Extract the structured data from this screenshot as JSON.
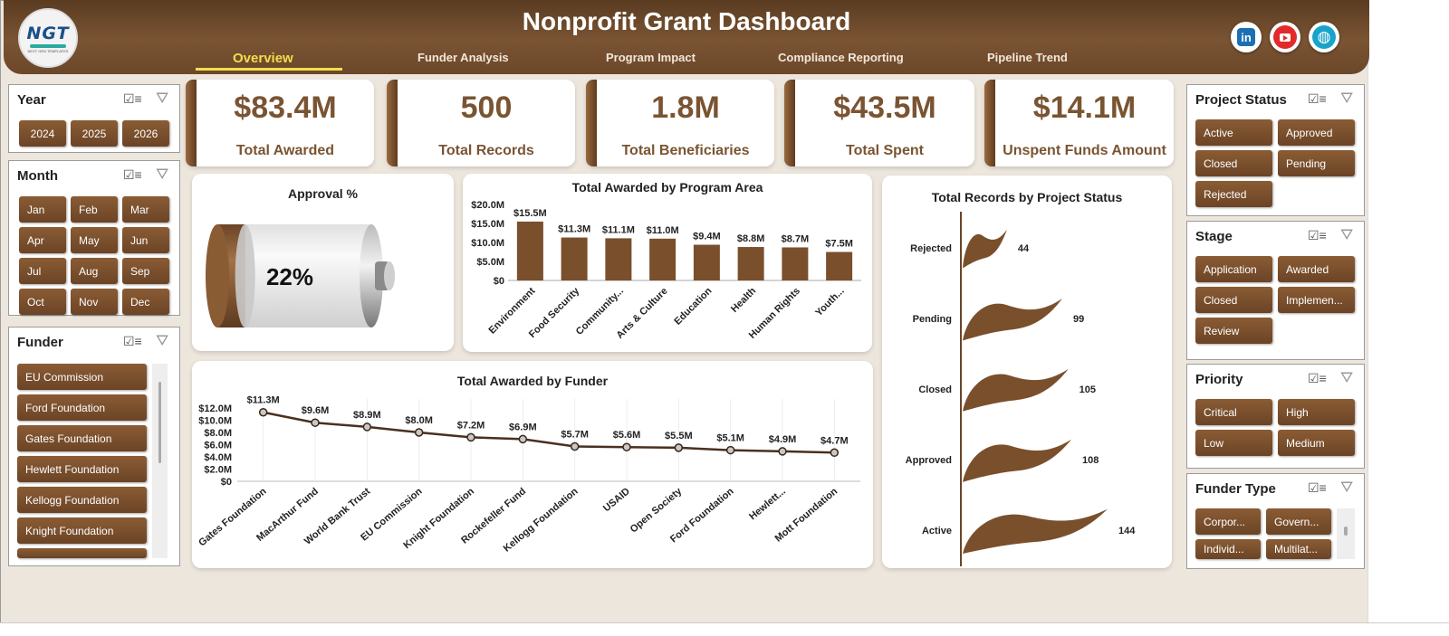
{
  "header": {
    "title": "Nonprofit Grant Dashboard",
    "logo_text": "NGT",
    "logo_subtext": "NEXT GEN TEMPLATES",
    "tabs": [
      {
        "label": "Overview",
        "active": true
      },
      {
        "label": "Funder Analysis",
        "active": false
      },
      {
        "label": "Program Impact",
        "active": false
      },
      {
        "label": "Compliance Reporting",
        "active": false
      },
      {
        "label": "Pipeline Trend",
        "active": false
      }
    ],
    "social": {
      "linkedin": "in",
      "youtube": "youtube-icon",
      "web": "globe-icon"
    },
    "colors": {
      "brand": "#6b4729",
      "accent": "#f4dd4c"
    }
  },
  "slicers": {
    "year": {
      "title": "Year",
      "items": [
        "2024",
        "2025",
        "2026"
      ]
    },
    "month": {
      "title": "Month",
      "items": [
        "Jan",
        "Feb",
        "Mar",
        "Apr",
        "May",
        "Jun",
        "Jul",
        "Aug",
        "Sep",
        "Oct",
        "Nov",
        "Dec"
      ]
    },
    "funder": {
      "title": "Funder",
      "items": [
        "EU Commission",
        "Ford Foundation",
        "Gates Foundation",
        "Hewlett Foundation",
        "Kellogg Foundation",
        "Knight Foundation"
      ]
    },
    "project_status": {
      "title": "Project Status",
      "items": [
        "Active",
        "Approved",
        "Closed",
        "Pending",
        "Rejected"
      ]
    },
    "stage": {
      "title": "Stage",
      "items": [
        "Application",
        "Awarded",
        "Closed",
        "Implemen...",
        "Review"
      ]
    },
    "priority": {
      "title": "Priority",
      "items": [
        "Critical",
        "High",
        "Low",
        "Medium"
      ]
    },
    "funder_type": {
      "title": "Funder Type",
      "items": [
        "Corpor...",
        "Govern...",
        "Individ...",
        "Multilat..."
      ]
    }
  },
  "kpis": [
    {
      "value": "$83.4M",
      "label": "Total Awarded"
    },
    {
      "value": "500",
      "label": "Total Records"
    },
    {
      "value": "1.8M",
      "label": "Total Beneficiaries"
    },
    {
      "value": "$43.5M",
      "label": "Total Spent"
    },
    {
      "value": "$14.1M",
      "label": "Unspent Funds Amount"
    }
  ],
  "approval": {
    "title": "Approval %",
    "value_text": "22%",
    "value": 22
  },
  "chart_data": [
    {
      "type": "bar",
      "title": "Total Awarded by Program Area",
      "categories": [
        "Environment",
        "Food Security",
        "Community...",
        "Arts & Culture",
        "Education",
        "Health",
        "Human Rights",
        "Youth..."
      ],
      "values": [
        15.5,
        11.3,
        11.1,
        11.0,
        9.4,
        8.8,
        8.7,
        7.5
      ],
      "data_labels": [
        "$15.5M",
        "$11.3M",
        "$11.1M",
        "$11.0M",
        "$9.4M",
        "$8.8M",
        "$8.7M",
        "$7.5M"
      ],
      "y_ticks": [
        "$0",
        "$5.0M",
        "$10.0M",
        "$15.0M",
        "$20.0M"
      ],
      "ylim": [
        0,
        20
      ]
    },
    {
      "type": "line",
      "title": "Total Awarded by Funder",
      "categories": [
        "Gates Foundation",
        "MacArthur Fund",
        "World Bank Trust",
        "EU Commission",
        "Knight Foundation",
        "Rockefeller Fund",
        "Kellogg Foundation",
        "USAID",
        "Open Society",
        "Ford Foundation",
        "Hewlett...",
        "Mott Foundation"
      ],
      "values": [
        11.3,
        9.6,
        8.9,
        8.0,
        7.2,
        6.9,
        5.7,
        5.6,
        5.5,
        5.1,
        4.9,
        4.7
      ],
      "data_labels": [
        "$11.3M",
        "$9.6M",
        "$8.9M",
        "$8.0M",
        "$7.2M",
        "$6.9M",
        "$5.7M",
        "$5.6M",
        "$5.5M",
        "$5.1M",
        "$4.9M",
        "$4.7M"
      ],
      "y_ticks": [
        "$0",
        "$2.0M",
        "$4.0M",
        "$6.0M",
        "$8.0M",
        "$10.0M",
        "$12.0M"
      ],
      "ylim": [
        0,
        12
      ]
    },
    {
      "type": "bar",
      "orientation": "horizontal",
      "title": "Total Records by Project Status",
      "categories": [
        "Rejected",
        "Pending",
        "Closed",
        "Approved",
        "Active"
      ],
      "values": [
        44,
        99,
        105,
        108,
        144
      ]
    }
  ]
}
